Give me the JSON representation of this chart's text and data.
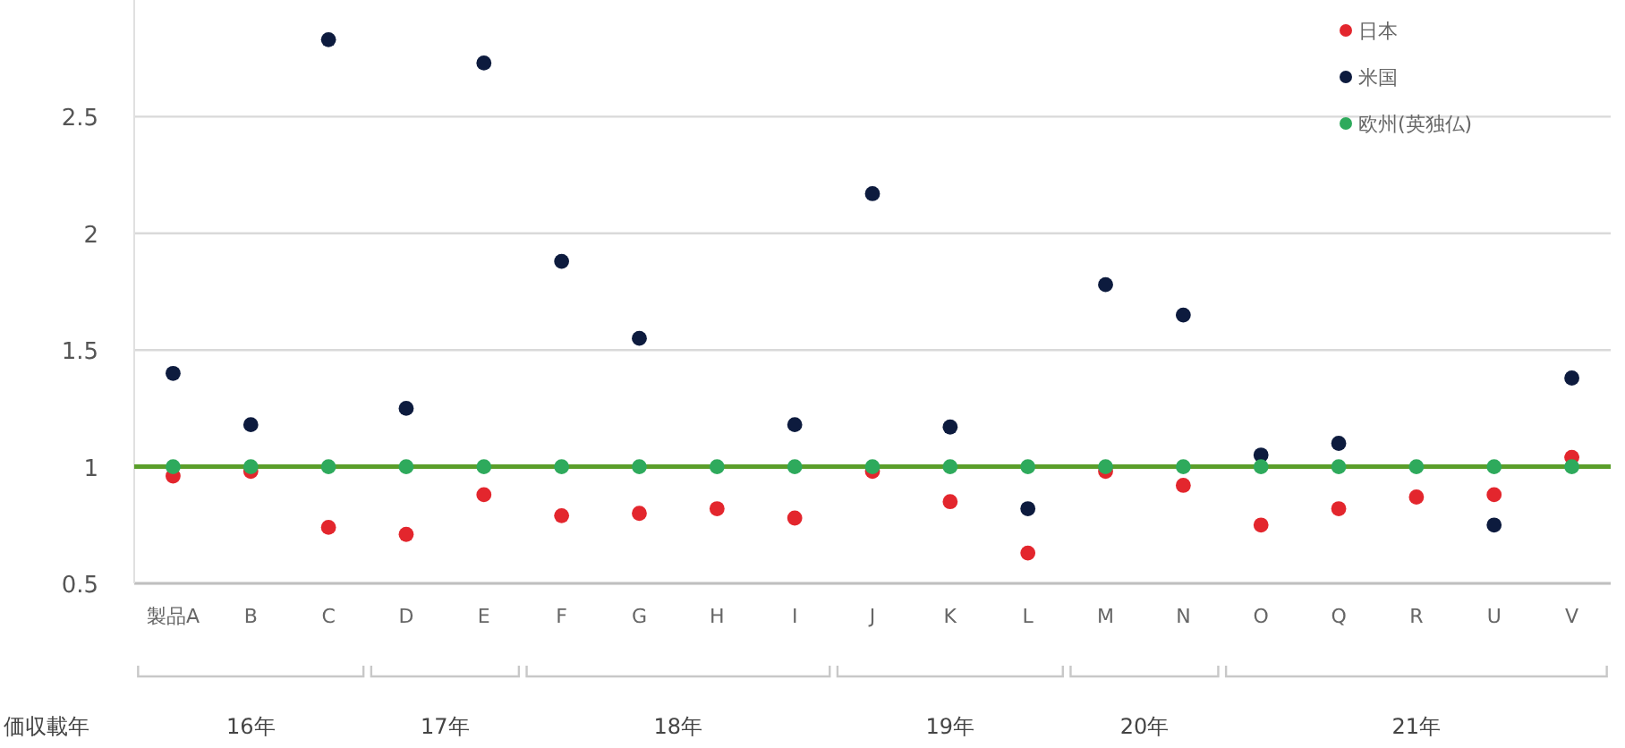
{
  "chart_data": {
    "type": "scatter",
    "categories": [
      "製品A",
      "B",
      "C",
      "D",
      "E",
      "F",
      "G",
      "H",
      "I",
      "J",
      "K",
      "L",
      "M",
      "N",
      "O",
      "Q",
      "R",
      "U",
      "V"
    ],
    "series": [
      {
        "name": "日本",
        "color": "#e3262d",
        "values": [
          0.96,
          0.98,
          0.74,
          0.71,
          0.88,
          0.79,
          0.8,
          0.82,
          0.78,
          0.98,
          0.85,
          0.63,
          0.98,
          0.92,
          0.75,
          0.82,
          0.87,
          0.88,
          1.04
        ]
      },
      {
        "name": "米国",
        "color": "#0d1b3e",
        "values": [
          1.4,
          1.18,
          2.83,
          1.25,
          2.73,
          1.88,
          1.55,
          null,
          1.18,
          2.17,
          1.17,
          0.82,
          1.78,
          1.65,
          1.05,
          1.1,
          null,
          0.75,
          1.38
        ]
      },
      {
        "name": "欧州(英独仏)",
        "color": "#2eaa5c",
        "values": [
          1,
          1,
          1,
          1,
          1,
          1,
          1,
          1,
          1,
          1,
          1,
          1,
          1,
          1,
          1,
          1,
          1,
          1,
          1
        ]
      }
    ],
    "ylim": [
      0.5,
      3.0
    ],
    "yticks": [
      0.5,
      1.0,
      1.5,
      2.0,
      2.5
    ],
    "grid": "y",
    "legend": "top right",
    "marker": "circle",
    "ref_lines": [
      {
        "axis": "y",
        "value": 1.0,
        "label": null,
        "color": "#5a9e2a"
      }
    ],
    "annotations": [
      "価収載年",
      "16年",
      "17年",
      "18年",
      "19年",
      "20年",
      "21年"
    ]
  }
}
